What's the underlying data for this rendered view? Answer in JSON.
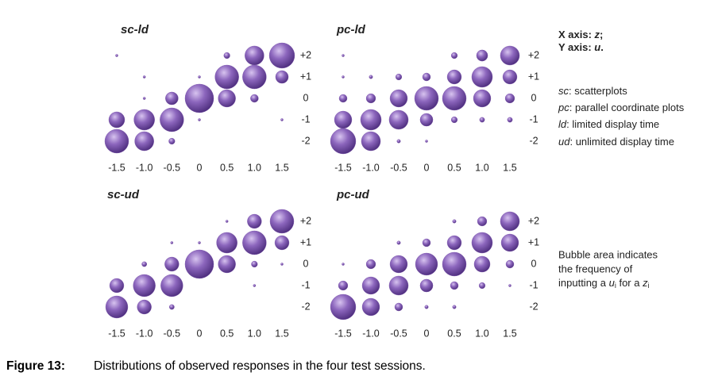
{
  "chart_data": [
    {
      "type": "bubble",
      "title": "sc-ld",
      "color": "#7d58ad",
      "x": [
        -1.5,
        -1.5,
        -1.5,
        -1,
        -1,
        -1,
        -1,
        -0.5,
        -0.5,
        -0.5,
        0,
        0,
        0,
        0.5,
        0.5,
        0.5,
        1,
        1,
        1,
        1.5,
        1.5,
        1.5
      ],
      "y": [
        2,
        -1,
        -2,
        1,
        0,
        -1,
        -2,
        0,
        -1,
        -2,
        1,
        0,
        -1,
        2,
        1,
        0,
        2,
        1,
        0,
        2,
        1,
        -1
      ],
      "sizes": [
        1,
        40,
        90,
        1,
        1,
        68,
        58,
        26,
        90,
        6,
        1,
        130,
        1,
        6,
        90,
        48,
        58,
        90,
        10,
        102,
        26,
        1
      ],
      "xlim": [
        -1.5,
        1.5
      ],
      "ylim": [
        -2,
        2
      ],
      "xticks": [
        -1.5,
        {
          "value": -1,
          "label": "-1.0"
        },
        -0.5,
        0,
        0.5,
        {
          "value": 1,
          "label": "1.0"
        },
        1.5
      ],
      "yticks": [
        {
          "value": 2,
          "label": "+2"
        },
        {
          "value": 1,
          "label": "+1"
        },
        0,
        -1,
        -2
      ]
    },
    {
      "type": "bubble",
      "title": "pc-ld",
      "color": "#7d58ad",
      "x": [
        -1.5,
        -1.5,
        -1.5,
        -1.5,
        -1.5,
        -1,
        -1,
        -1,
        -1,
        -0.5,
        -0.5,
        -0.5,
        -0.5,
        0,
        0,
        0,
        0,
        0.5,
        0.5,
        0.5,
        0.5,
        1,
        1,
        1,
        1,
        1.5,
        1.5,
        1.5,
        1.5
      ],
      "y": [
        2,
        1,
        0,
        -1,
        -2,
        1,
        0,
        -1,
        -2,
        1,
        0,
        -1,
        -2,
        1,
        0,
        -1,
        -2,
        2,
        1,
        0,
        -1,
        2,
        1,
        0,
        -1,
        2,
        1,
        0,
        -1
      ],
      "sizes": [
        1,
        1,
        10,
        48,
        102,
        2,
        14,
        68,
        58,
        6,
        48,
        58,
        2,
        10,
        90,
        26,
        1,
        6,
        32,
        90,
        6,
        20,
        68,
        48,
        4,
        58,
        32,
        14,
        4
      ],
      "xlim": [
        -1.5,
        1.5
      ],
      "ylim": [
        -2,
        2
      ],
      "xticks": [
        -1.5,
        {
          "value": -1,
          "label": "-1.0"
        },
        -0.5,
        0,
        0.5,
        {
          "value": 1,
          "label": "1.0"
        },
        1.5
      ],
      "yticks": [
        {
          "value": 2,
          "label": "+2"
        },
        {
          "value": 1,
          "label": "+1"
        },
        0,
        -1,
        -2
      ]
    },
    {
      "type": "bubble",
      "title": "sc-ud",
      "color": "#7d58ad",
      "x": [
        -1.5,
        -1.5,
        -1,
        -1,
        -1,
        -0.5,
        -0.5,
        -0.5,
        -0.5,
        0,
        0,
        0.5,
        0.5,
        0.5,
        1,
        1,
        1,
        1,
        1.5,
        1.5,
        1.5
      ],
      "y": [
        -1,
        -2,
        0,
        -1,
        -2,
        1,
        0,
        -1,
        -2,
        1,
        0,
        2,
        1,
        0,
        2,
        1,
        0,
        -1,
        2,
        1,
        0
      ],
      "sizes": [
        32,
        78,
        4,
        78,
        32,
        1,
        32,
        78,
        4,
        1,
        130,
        1,
        68,
        48,
        32,
        90,
        6,
        1,
        90,
        32,
        1
      ],
      "xlim": [
        -1.5,
        1.5
      ],
      "ylim": [
        -2,
        2
      ],
      "xticks": [
        -1.5,
        {
          "value": -1,
          "label": "-1.0"
        },
        -0.5,
        0,
        0.5,
        {
          "value": 1,
          "label": "1.0"
        },
        1.5
      ],
      "yticks": [
        {
          "value": 2,
          "label": "+2"
        },
        {
          "value": 1,
          "label": "+1"
        },
        0,
        -1,
        -2
      ]
    },
    {
      "type": "bubble",
      "title": "pc-ud",
      "color": "#7d58ad",
      "x": [
        -1.5,
        -1.5,
        -1.5,
        -1,
        -1,
        -1,
        -0.5,
        -0.5,
        -0.5,
        -0.5,
        0,
        0,
        0,
        0,
        0.5,
        0.5,
        0.5,
        0.5,
        0.5,
        1,
        1,
        1,
        1,
        1.5,
        1.5,
        1.5,
        1.5
      ],
      "y": [
        0,
        -1,
        -2,
        0,
        -1,
        -2,
        1,
        0,
        -1,
        -2,
        1,
        0,
        -1,
        -2,
        2,
        1,
        0,
        -1,
        -2,
        2,
        1,
        0,
        -1,
        2,
        1,
        0,
        -1
      ],
      "sizes": [
        1,
        14,
        102,
        14,
        48,
        48,
        2,
        48,
        58,
        10,
        10,
        78,
        26,
        2,
        2,
        32,
        90,
        10,
        2,
        14,
        68,
        40,
        6,
        58,
        48,
        10,
        1
      ],
      "xlim": [
        -1.5,
        1.5
      ],
      "ylim": [
        -2,
        2
      ],
      "xticks": [
        -1.5,
        {
          "value": -1,
          "label": "-1.0"
        },
        -0.5,
        0,
        0.5,
        {
          "value": 1,
          "label": "1.0"
        },
        1.5
      ],
      "yticks": [
        {
          "value": 2,
          "label": "+2"
        },
        {
          "value": 1,
          "label": "+1"
        },
        0,
        -1,
        -2
      ]
    }
  ],
  "notes": {
    "axes": [
      [
        "X axis: ",
        "z",
        ";"
      ],
      [
        "Y axis: ",
        "u",
        "."
      ]
    ],
    "definitions": [
      {
        "abbr": "sc",
        "text": ": scatterplots"
      },
      {
        "abbr": "pc",
        "text": ": parallel coordinate plots"
      },
      {
        "abbr": "ld",
        "text": ": limited display time"
      },
      {
        "abbr": "ud",
        "text": ": unlimited display time"
      }
    ],
    "bubble_lines": [
      "Bubble area indicates",
      "the frequency of"
    ],
    "bubble_last": [
      "inputting a ",
      "u",
      "i",
      " for a ",
      "z",
      "i"
    ]
  },
  "caption": {
    "label": "Figure 13:",
    "text": "Distributions of observed responses in the four test sessions."
  }
}
